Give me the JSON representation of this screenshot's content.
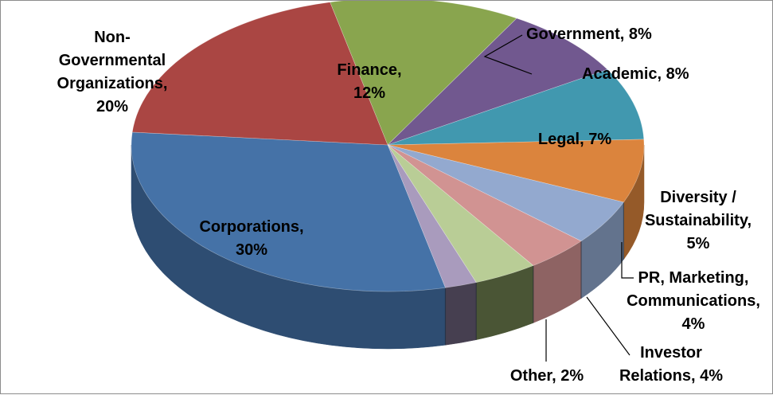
{
  "chart_data": {
    "type": "pie",
    "title": "",
    "three_d": true,
    "legend": "none",
    "slices": [
      {
        "label": "Finance",
        "value": 12,
        "display": [
          "Finance,",
          "12%"
        ],
        "color": "#89a54e",
        "side": "#5d7034"
      },
      {
        "label": "Government",
        "value": 8,
        "display": [
          "Government, 8%"
        ],
        "color": "#71588f",
        "side": "#4c3b61"
      },
      {
        "label": "Academic",
        "value": 8,
        "display": [
          "Academic,  8%"
        ],
        "color": "#4198af",
        "side": "#2b6677"
      },
      {
        "label": "Legal",
        "value": 7,
        "display": [
          "Legal, 7%"
        ],
        "color": "#db843d",
        "side": "#955a29"
      },
      {
        "label": "Diversity / Sustainability",
        "value": 5,
        "display": [
          "Diversity /",
          "Sustainability,",
          "5%"
        ],
        "color": "#93a9cf",
        "side": "#63738d"
      },
      {
        "label": "PR, Marketing, Communications",
        "value": 4,
        "display": [
          "PR, Marketing,",
          "Communications,",
          "4%"
        ],
        "color": "#d19392",
        "side": "#8e6363"
      },
      {
        "label": "Investor Relations",
        "value": 4,
        "display": [
          "Investor",
          "Relations, 4%"
        ],
        "color": "#b9cd96",
        "side": "#4a5535"
      },
      {
        "label": "Other",
        "value": 2,
        "display": [
          "Other, 2%"
        ],
        "color": "#a99bbd",
        "side": "#463f50"
      },
      {
        "label": "Corporations",
        "value": 30,
        "display": [
          "Corporations,",
          "30%"
        ],
        "color": "#4572a7",
        "side": "#2e4d72"
      },
      {
        "label": "Non-Governmental Organizations",
        "value": 20,
        "display": [
          "Non-",
          "Governmental",
          "Organizations,",
          "20%"
        ],
        "color": "#aa4643",
        "side": "#752f2d"
      }
    ]
  }
}
